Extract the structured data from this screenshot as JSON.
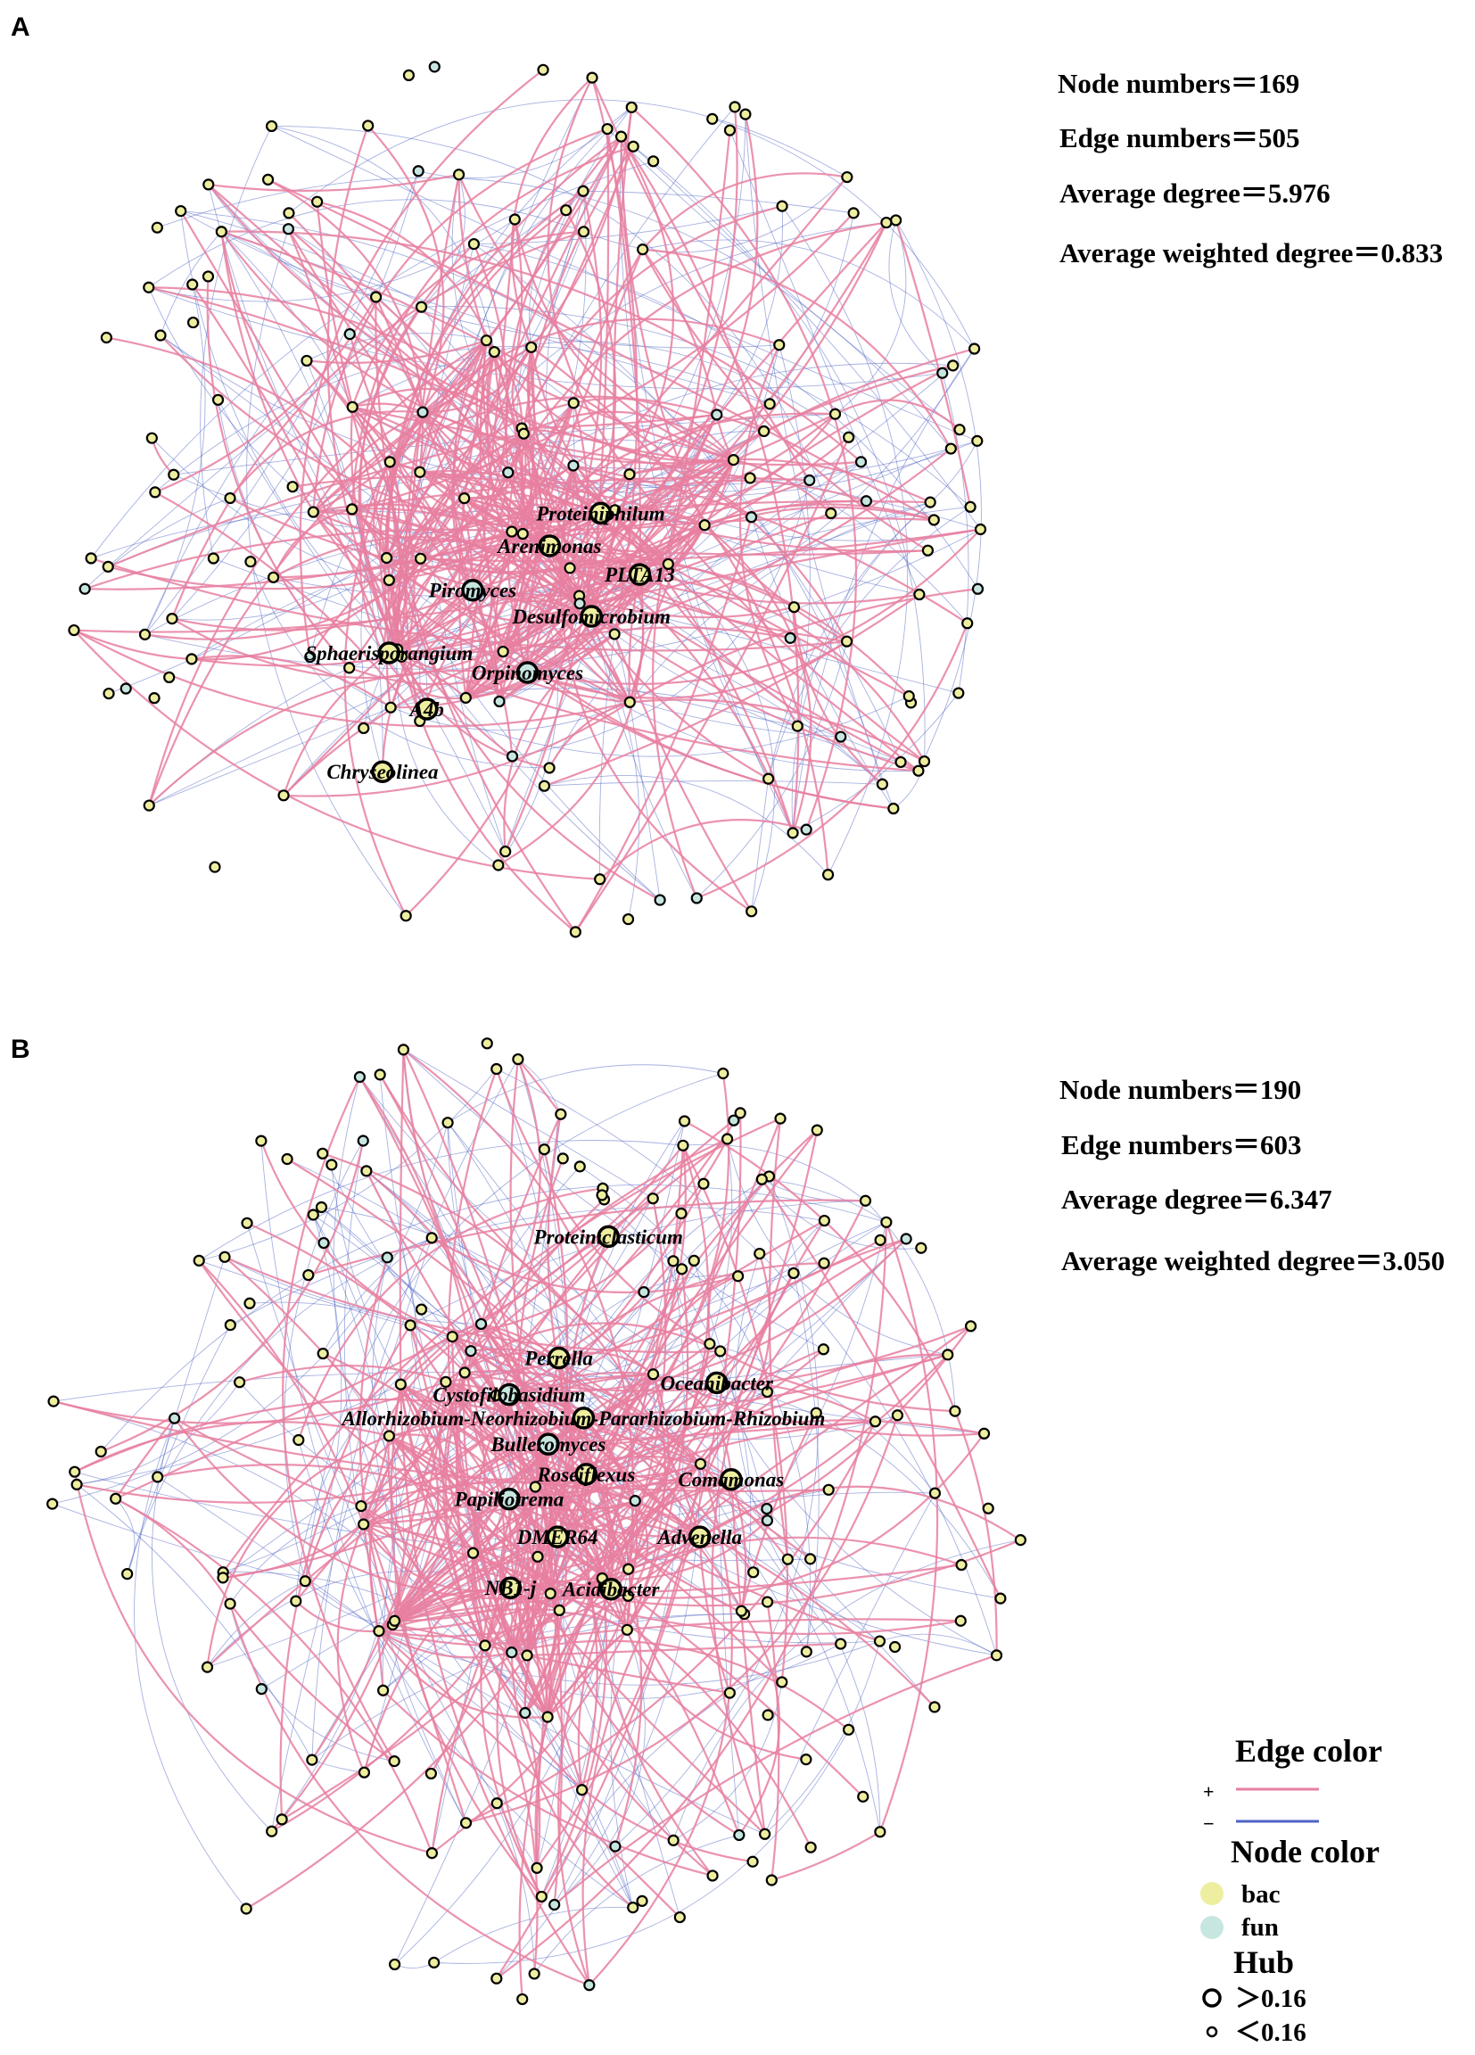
{
  "panels": [
    {
      "label": "A",
      "stats": [
        "Node numbers＝169",
        "Edge numbers＝505",
        "Average degree＝5.976",
        "Average weighted degree＝0.833"
      ],
      "hubs": [
        "Proteiniphilum",
        "Arenimonas",
        "PLTA13",
        "Piromyces",
        "Desulfomicrobium",
        "Sphaerisporangium",
        "Orpinomyces",
        "A4b",
        "Chryseolinea"
      ]
    },
    {
      "label": "B",
      "stats": [
        "Node numbers＝190",
        "Edge numbers＝603",
        "Average degree＝6.347",
        "Average weighted degree＝3.050"
      ],
      "hubs": [
        "Proteiniclasticum",
        "Perrella",
        "Cystofilobasidium",
        "Oceanibacter",
        "Allorhizobium-Neorhizobium-Pararhizobium-Rhizobium",
        "Bulleromyces",
        "Roseiflexus",
        "Comamonas",
        "Papiliotrema",
        "DMER64",
        "Advenella",
        "NB1-j",
        "Acidibacter"
      ]
    }
  ],
  "legend": {
    "edge_title": "Edge color",
    "edge_items": [
      "+",
      "−"
    ],
    "node_title": "Node color",
    "node_items": [
      "bac",
      "fun"
    ],
    "hub_title": "Hub",
    "hub_items": [
      "＞0.16",
      "＜0.16"
    ]
  }
}
